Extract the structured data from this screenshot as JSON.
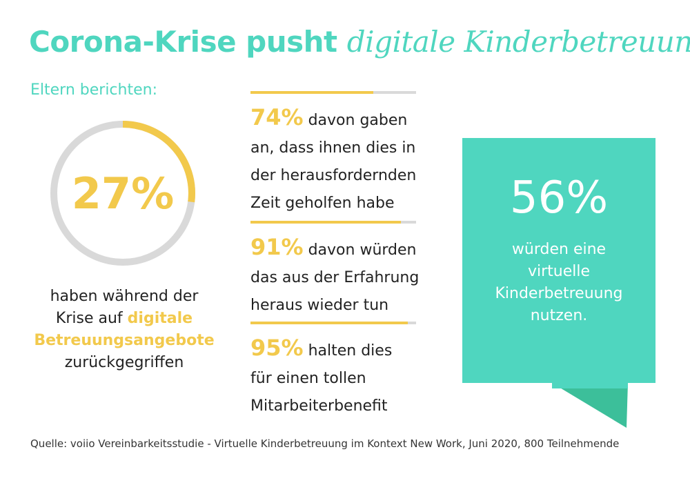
{
  "title": {
    "part1": "Corona-Krise pusht ",
    "part2": "digitale Kinderbetreuung"
  },
  "intro": "Eltern berichten:",
  "ring": {
    "value": "27%",
    "fraction": 0.27,
    "color_fill": "#f2c94c",
    "color_track": "#d9d9d9"
  },
  "left_desc": {
    "line1": "haben während der",
    "line2_a": "Krise auf ",
    "line2_b": "digitale",
    "line3": "Betreuungsangebote",
    "line4": "zurückgegriffen"
  },
  "stats": [
    {
      "pct": "74%",
      "fraction": 0.74,
      "line1": " davon gaben",
      "line2": "an, dass ihnen dies in",
      "line3": "der herausfordernden",
      "line4": "Zeit geholfen habe"
    },
    {
      "pct": "91%",
      "fraction": 0.91,
      "line1": " davon würden",
      "line2": "das aus der Erfahrung",
      "line3": "heraus wieder tun"
    },
    {
      "pct": "95%",
      "fraction": 0.95,
      "line1": " halten dies",
      "line2": "für einen tollen",
      "line3": "Mitarbeiterbenefit"
    }
  ],
  "callout": {
    "pct": "56%",
    "line1": "würden eine",
    "line2": "virtuelle",
    "line3": "Kinderbetreuung",
    "line4": "nutzen.",
    "color": "#4fd6bf",
    "tail_color": "#3cbf9a"
  },
  "source": "Quelle: voiio Vereinbarkeitsstudie - Virtuelle Kinderbetreuung im Kontext New Work, Juni 2020, 800 Teilnehmende"
}
